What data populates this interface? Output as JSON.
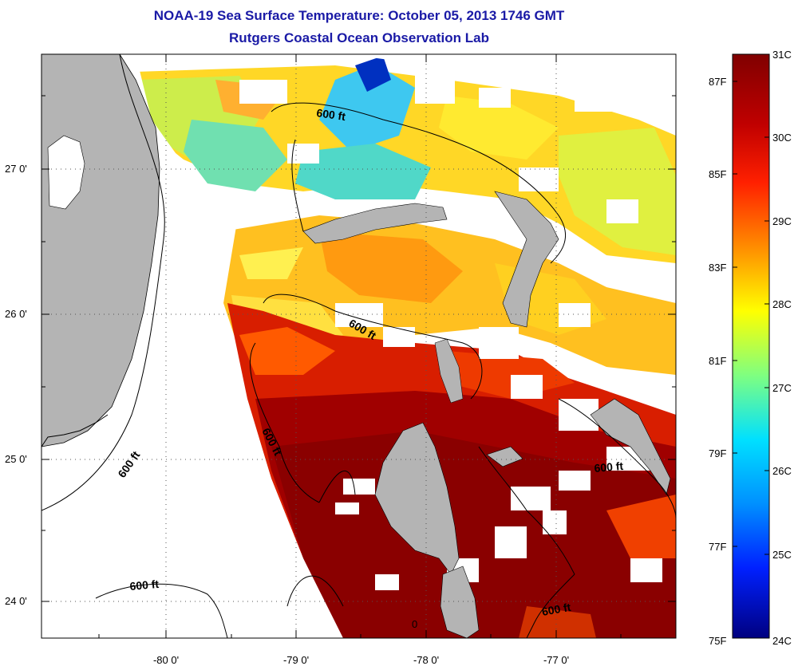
{
  "title": "NOAA-19 Sea Surface Temperature:  October 05, 2013 1746 GMT",
  "subtitle": "Rutgers Coastal Ocean Observation Lab",
  "lon_labels": [
    "-80 0'",
    "-79 0'",
    "-78 0'",
    "-77 0'"
  ],
  "lat_labels": [
    "27 0'",
    "26 0'",
    "25 0'",
    "24 0'"
  ],
  "contour_label": "600 ft",
  "contour_label_extra": "0",
  "colorbar": {
    "celsius": [
      "31C",
      "30C",
      "29C",
      "28C",
      "27C",
      "26C",
      "25C",
      "24C"
    ],
    "fahrenheit": [
      "87F",
      "85F",
      "83F",
      "81F",
      "79F",
      "77F",
      "75F"
    ],
    "colors": [
      "#800000",
      "#e21d00",
      "#ff8a00",
      "#ffff00",
      "#55ffaa",
      "#00b0ff",
      "#0040ff",
      "#000080"
    ]
  },
  "colors": {
    "title": "#1a1aa6",
    "land": "#b4b4b4",
    "cloud": "#ffffff",
    "sst_hot": "#8b0000",
    "sst_warm": "#d92a00",
    "sst_mid": "#ffb000",
    "sst_cool": "#fff000",
    "sst_cold": "#3fd7e0"
  }
}
